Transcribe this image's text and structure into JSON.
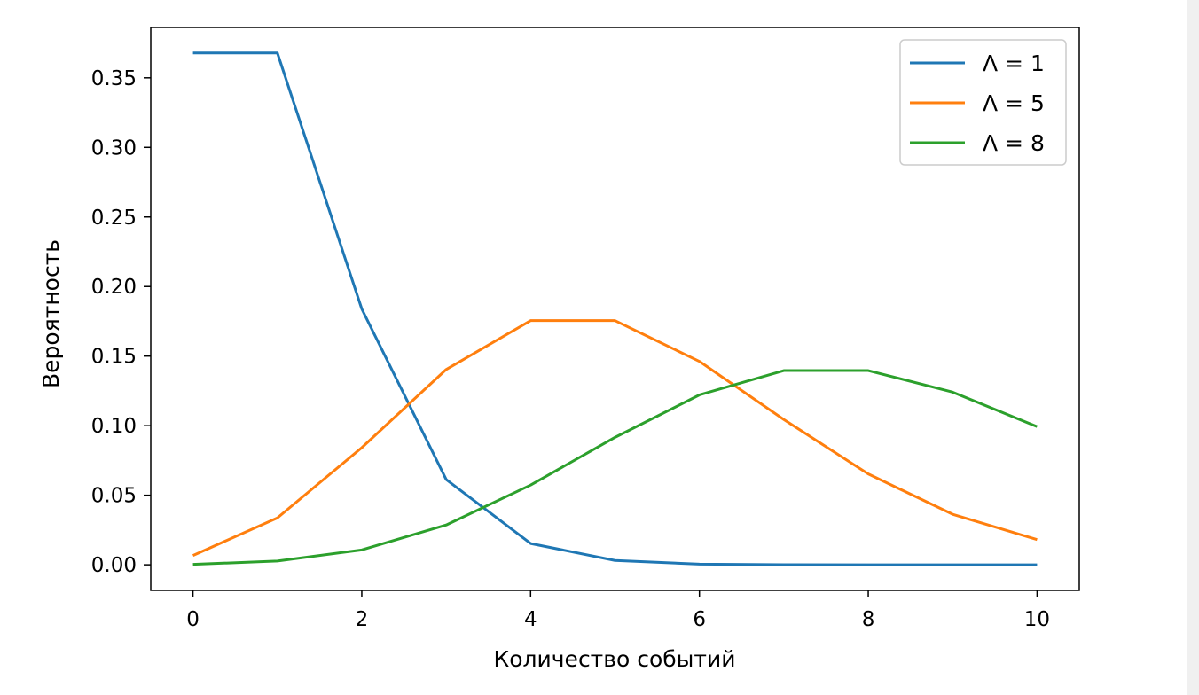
{
  "chart_data": {
    "type": "line",
    "title": "",
    "xlabel": "Количество событий",
    "ylabel": "Вероятность",
    "xlim": [
      -0.5,
      10.5
    ],
    "ylim": [
      -0.0184,
      0.3862
    ],
    "xticks": [
      0,
      2,
      4,
      6,
      8,
      10
    ],
    "xtick_labels": [
      "0",
      "2",
      "4",
      "6",
      "8",
      "10"
    ],
    "yticks": [
      0.0,
      0.05,
      0.1,
      0.15,
      0.2,
      0.25,
      0.3,
      0.35
    ],
    "ytick_labels": [
      "0.00",
      "0.05",
      "0.10",
      "0.15",
      "0.20",
      "0.25",
      "0.30",
      "0.35"
    ],
    "grid": false,
    "legend_position": "top-right",
    "x": [
      0,
      1,
      2,
      3,
      4,
      5,
      6,
      7,
      8,
      9,
      10
    ],
    "series": [
      {
        "name": "Λ = 1",
        "color": "#1f77b4",
        "values": [
          0.3679,
          0.3679,
          0.1839,
          0.0613,
          0.0153,
          0.0031,
          0.0005,
          0.0001,
          0.0,
          0.0,
          0.0
        ]
      },
      {
        "name": "Λ = 5",
        "color": "#ff7f0e",
        "values": [
          0.0067,
          0.0337,
          0.0842,
          0.1404,
          0.1755,
          0.1755,
          0.1462,
          0.1044,
          0.0653,
          0.0363,
          0.0181
        ]
      },
      {
        "name": "Λ = 8",
        "color": "#2ca02c",
        "values": [
          0.0003,
          0.0027,
          0.0107,
          0.0286,
          0.0573,
          0.0916,
          0.1221,
          0.1396,
          0.1396,
          0.1241,
          0.0993
        ]
      }
    ]
  }
}
